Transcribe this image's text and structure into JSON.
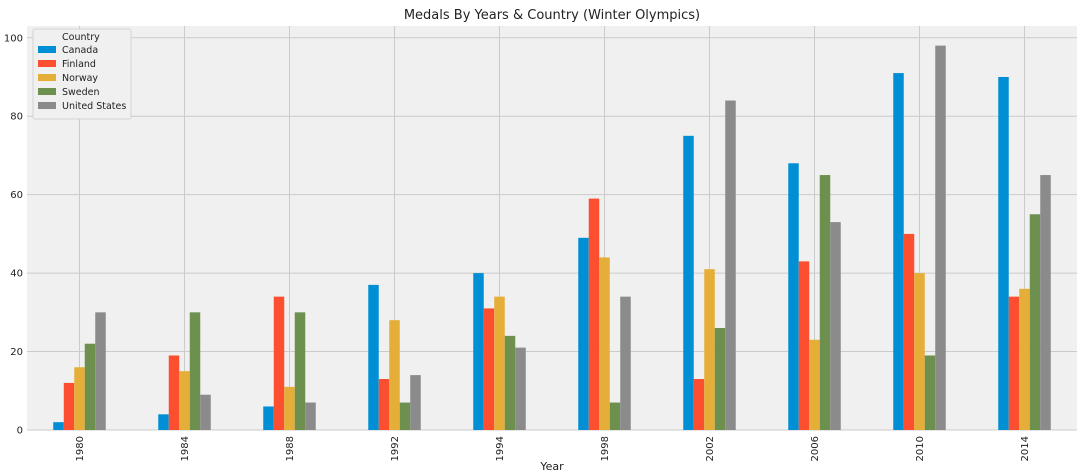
{
  "chart_data": {
    "type": "bar",
    "title": "Medals By Years & Country (Winter Olympics)",
    "xlabel": "Year",
    "ylabel": "",
    "categories": [
      "1980",
      "1984",
      "1988",
      "1992",
      "1994",
      "1998",
      "2002",
      "2006",
      "2010",
      "2014"
    ],
    "ylim": [
      0,
      103
    ],
    "yticks": [
      0,
      20,
      40,
      60,
      80,
      100
    ],
    "grid": true,
    "legend": {
      "title": "Country",
      "position": "top-left"
    },
    "series": [
      {
        "name": "Canada",
        "color": "#008fd5",
        "values": [
          2,
          4,
          6,
          37,
          40,
          49,
          75,
          68,
          91,
          90
        ]
      },
      {
        "name": "Finland",
        "color": "#fc4f30",
        "values": [
          12,
          19,
          34,
          13,
          31,
          59,
          13,
          43,
          50,
          34
        ]
      },
      {
        "name": "Norway",
        "color": "#e5ae38",
        "values": [
          16,
          15,
          11,
          28,
          34,
          44,
          41,
          23,
          40,
          36
        ]
      },
      {
        "name": "Sweden",
        "color": "#6d904f",
        "values": [
          22,
          30,
          30,
          7,
          24,
          7,
          26,
          65,
          19,
          55
        ]
      },
      {
        "name": "United States",
        "color": "#8b8b8b",
        "values": [
          30,
          9,
          7,
          14,
          21,
          34,
          84,
          53,
          98,
          65
        ]
      }
    ]
  }
}
